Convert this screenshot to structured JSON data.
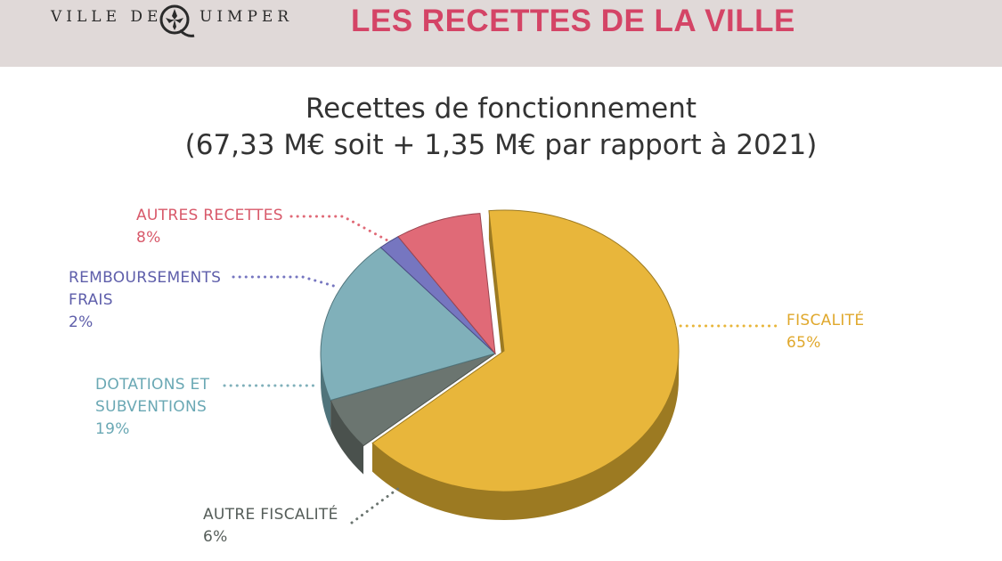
{
  "header": {
    "logo_left": "VILLE DE",
    "logo_right": "UIMPER",
    "title": "LES RECETTES DE LA VILLE"
  },
  "chart_data": {
    "type": "pie",
    "title_line1": "Recettes de fonctionnement",
    "title_line2": "(67,33 M€ soit + 1,35 M€ par rapport à 2021)",
    "slices": [
      {
        "name": "FISCALITÉ",
        "value": 65,
        "pct_label": "65%",
        "color": "#e8b63b",
        "side": "#9c7a22"
      },
      {
        "name": "AUTRE FISCALITÉ",
        "value": 6,
        "pct_label": "6%",
        "color": "#6b7570",
        "side": "#4a514d"
      },
      {
        "name": "DOTATIONS ET SUBVENTIONS",
        "value": 19,
        "pct_label": "19%",
        "color": "#80b0ba",
        "side": "#50747b"
      },
      {
        "name": "REMBOURSEMENTS FRAIS",
        "value": 2,
        "pct_label": "2%",
        "color": "#7676c0",
        "side": "#4d4d86"
      },
      {
        "name": "AUTRES RECETTES",
        "value": 8,
        "pct_label": "8%",
        "color": "#e06a77",
        "side": "#9a4550"
      }
    ]
  }
}
